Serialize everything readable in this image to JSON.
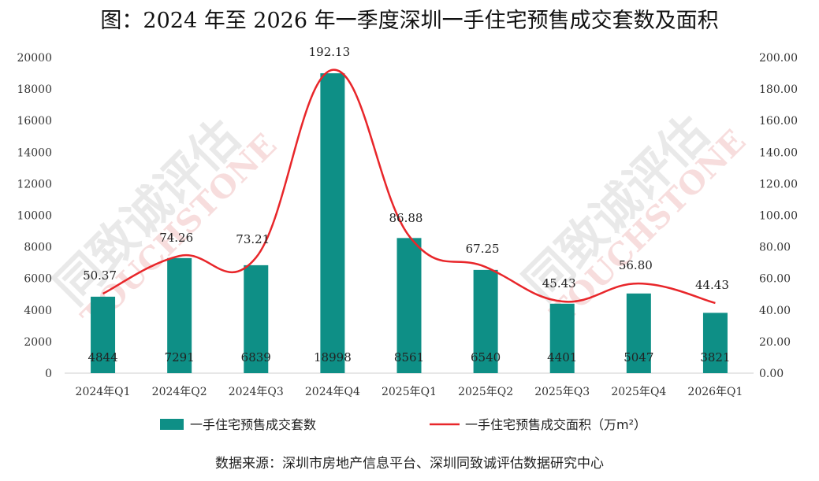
{
  "chart_data": {
    "type": "bar+line",
    "title": "图：2024 年至 2026 年一季度深圳一手住宅预售成交套数及面积",
    "categories": [
      "2024年Q1",
      "2024年Q2",
      "2024年Q3",
      "2024年Q4",
      "2025年Q1",
      "2025年Q2",
      "2025年Q3",
      "2025年Q4",
      "2026年Q1"
    ],
    "series": [
      {
        "name": "一手住宅预售成交套数",
        "type": "bar",
        "axis": "left",
        "color": "#0e8f86",
        "values": [
          4844,
          7291,
          6839,
          18998,
          8561,
          6540,
          4401,
          5047,
          3821
        ]
      },
      {
        "name": "一手住宅预售成交面积（万㎡）",
        "type": "line",
        "axis": "right",
        "color": "#e8262a",
        "values": [
          50.37,
          74.26,
          73.21,
          192.13,
          86.88,
          67.25,
          45.43,
          56.8,
          44.43
        ]
      }
    ],
    "bar_labels": [
      "4844",
      "7291",
      "6839",
      "18998",
      "8561",
      "6540",
      "4401",
      "5047",
      "3821"
    ],
    "line_labels": [
      "50.37",
      "74.26",
      "73.21",
      "192.13",
      "86.88",
      "67.25",
      "45.43",
      "56.80",
      "44.43"
    ],
    "left_axis": {
      "min": 0,
      "max": 20000,
      "step": 2000,
      "ticks": [
        "0",
        "2000",
        "4000",
        "6000",
        "8000",
        "10000",
        "12000",
        "14000",
        "16000",
        "18000",
        "20000"
      ]
    },
    "right_axis": {
      "min": 0,
      "max": 200,
      "step": 20,
      "ticks": [
        "0.00",
        "20.00",
        "40.00",
        "60.00",
        "80.00",
        "100.00",
        "120.00",
        "140.00",
        "160.00",
        "180.00",
        "200.00"
      ]
    },
    "legend": "bottom",
    "grid": false
  },
  "legend": {
    "bar": "一手住宅预售成交套数",
    "line": "一手住宅预售成交面积（万m²）"
  },
  "watermark": {
    "cn": "同致诚评估",
    "en": "TOUCHSTONE"
  },
  "source": "数据来源：深圳市房地产信息平台、深圳同致诚评估数据研究中心"
}
